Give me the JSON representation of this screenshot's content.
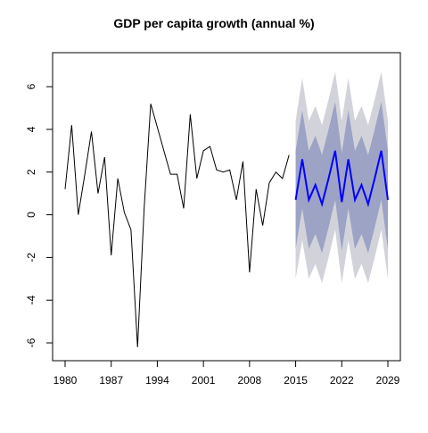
{
  "chart_data": {
    "type": "line",
    "title": "GDP per capita growth (annual %)",
    "xlabel": "",
    "ylabel": "",
    "xlim": [
      1980,
      2029
    ],
    "ylim": [
      -6.5,
      7.3
    ],
    "x_ticks": [
      "1980",
      "1987",
      "1994",
      "2001",
      "2008",
      "2015",
      "2022",
      "2029"
    ],
    "y_ticks": [
      "6",
      "4",
      "2",
      "0",
      "-2",
      "-4",
      "-6"
    ],
    "grid": false,
    "legend": "none",
    "colors": {
      "history": "#000000",
      "forecast": "#0000ff",
      "band80": "#9da3c4",
      "band95": "#d2d3da"
    },
    "history": {
      "x": [
        1980,
        1981,
        1982,
        1983,
        1984,
        1985,
        1986,
        1987,
        1988,
        1989,
        1990,
        1991,
        1992,
        1993,
        1994,
        1995,
        1996,
        1997,
        1998,
        1999,
        2000,
        2001,
        2002,
        2003,
        2004,
        2005,
        2006,
        2007,
        2008,
        2009,
        2010,
        2011,
        2012,
        2013,
        2014
      ],
      "y": [
        1.2,
        4.2,
        0.0,
        1.9,
        3.9,
        1.0,
        2.7,
        -1.9,
        1.7,
        0.1,
        -0.7,
        -6.2,
        0.3,
        5.2,
        4.1,
        3.0,
        1.9,
        1.9,
        0.3,
        4.7,
        1.7,
        3.0,
        3.2,
        2.1,
        2.0,
        2.1,
        0.7,
        2.5,
        -2.7,
        1.2,
        -0.5,
        1.5,
        2.0,
        1.7,
        2.8
      ]
    },
    "forecast": {
      "x": [
        2015,
        2016,
        2017,
        2018,
        2019,
        2020,
        2021,
        2022,
        2023,
        2024,
        2025,
        2026,
        2027,
        2028,
        2029
      ],
      "mean": [
        0.7,
        2.6,
        0.7,
        1.4,
        0.5,
        1.7,
        3.0,
        0.6,
        2.6,
        0.7,
        1.4,
        0.5,
        1.7,
        3.0,
        0.7
      ],
      "lo80": [
        -1.6,
        0.3,
        -1.6,
        -0.9,
        -1.8,
        -0.6,
        0.7,
        -1.7,
        0.3,
        -1.6,
        -0.9,
        -1.8,
        -0.6,
        0.7,
        -1.6
      ],
      "hi80": [
        3.0,
        4.9,
        3.0,
        3.7,
        2.8,
        4.0,
        5.3,
        2.9,
        4.9,
        3.0,
        3.7,
        2.8,
        4.0,
        5.3,
        3.0
      ],
      "lo95": [
        -3.0,
        -1.2,
        -3.0,
        -2.3,
        -3.2,
        -2.0,
        -0.7,
        -3.2,
        -1.2,
        -3.0,
        -2.3,
        -3.2,
        -2.0,
        -0.7,
        -3.0
      ],
      "hi95": [
        4.4,
        6.4,
        4.4,
        5.1,
        4.2,
        5.4,
        6.7,
        4.4,
        6.4,
        4.4,
        5.1,
        4.2,
        5.4,
        6.7,
        4.4
      ]
    }
  }
}
